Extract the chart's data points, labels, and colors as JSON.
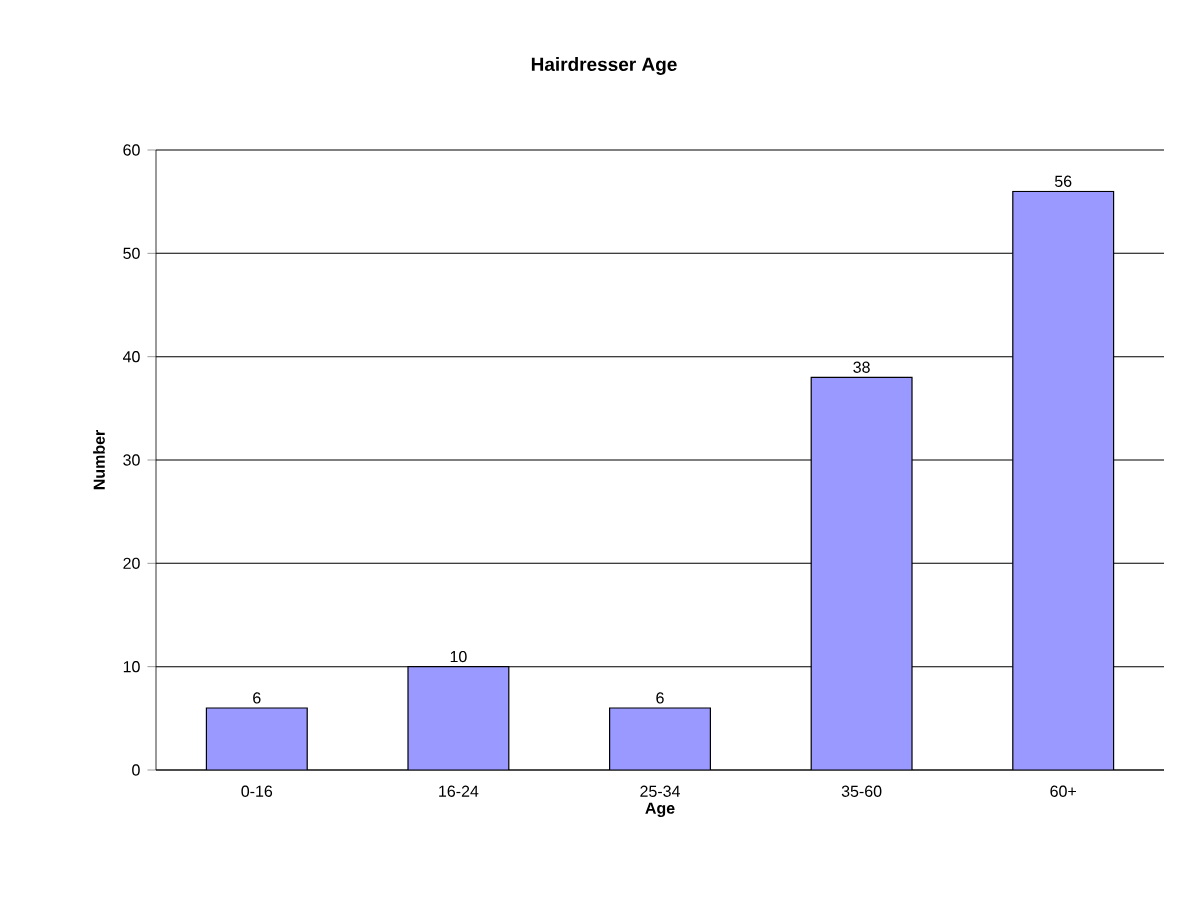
{
  "chart_data": {
    "type": "bar",
    "title": "Hairdresser Age",
    "xlabel": "Age",
    "ylabel": "Number",
    "categories": [
      "0-16",
      "16-24",
      "25-34",
      "35-60",
      "60+"
    ],
    "values": [
      6,
      10,
      6,
      38,
      56
    ],
    "color": "#9999ff",
    "ylim": [
      0,
      60
    ],
    "yticks": [
      0,
      10,
      20,
      30,
      40,
      50,
      60
    ],
    "grid": "y",
    "data_labels": true
  }
}
